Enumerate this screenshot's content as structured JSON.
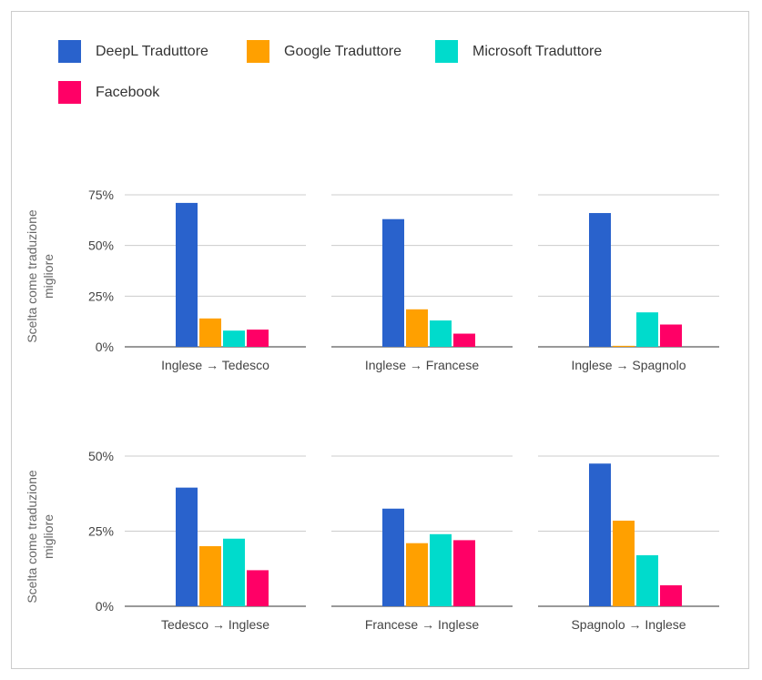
{
  "legend": [
    {
      "name": "DeepL Traduttore",
      "color": "#2962cc"
    },
    {
      "name": "Google Traduttore",
      "color": "#ffa000"
    },
    {
      "name": "Microsoft Traduttore",
      "color": "#00dbcc"
    },
    {
      "name": "Facebook",
      "color": "#ff0066"
    }
  ],
  "y_axis_label": "Scelta come traduzione migliore",
  "chart_data": [
    {
      "type": "bar",
      "title": "",
      "xlabel": "Inglese → Tedesco",
      "ylabel": "Scelta come traduzione migliore",
      "ylim": [
        0,
        75
      ],
      "yticks": [
        "0%",
        "25%",
        "50%",
        "75%"
      ],
      "series": [
        {
          "name": "DeepL Traduttore",
          "values": [
            71
          ]
        },
        {
          "name": "Google Traduttore",
          "values": [
            14
          ]
        },
        {
          "name": "Microsoft Traduttore",
          "values": [
            8
          ]
        },
        {
          "name": "Facebook",
          "values": [
            8.5
          ]
        }
      ]
    },
    {
      "type": "bar",
      "title": "",
      "xlabel": "Inglese → Francese",
      "ylabel": "",
      "ylim": [
        0,
        75
      ],
      "yticks": [],
      "series": [
        {
          "name": "DeepL Traduttore",
          "values": [
            63
          ]
        },
        {
          "name": "Google Traduttore",
          "values": [
            18.5
          ]
        },
        {
          "name": "Microsoft Traduttore",
          "values": [
            13
          ]
        },
        {
          "name": "Facebook",
          "values": [
            6.5
          ]
        }
      ]
    },
    {
      "type": "bar",
      "title": "",
      "xlabel": "Inglese → Spagnolo",
      "ylabel": "",
      "ylim": [
        0,
        75
      ],
      "yticks": [],
      "series": [
        {
          "name": "DeepL Traduttore",
          "values": [
            66
          ]
        },
        {
          "name": "Google Traduttore",
          "values": [
            0.5
          ]
        },
        {
          "name": "Microsoft Traduttore",
          "values": [
            17
          ]
        },
        {
          "name": "Facebook",
          "values": [
            11
          ]
        }
      ]
    },
    {
      "type": "bar",
      "title": "",
      "xlabel": "Tedesco → Inglese",
      "ylabel": "Scelta come traduzione migliore",
      "ylim": [
        0,
        50
      ],
      "yticks": [
        "0%",
        "25%",
        "50%"
      ],
      "series": [
        {
          "name": "DeepL Traduttore",
          "values": [
            39.5
          ]
        },
        {
          "name": "Google Traduttore",
          "values": [
            20
          ]
        },
        {
          "name": "Microsoft Traduttore",
          "values": [
            22.5
          ]
        },
        {
          "name": "Facebook",
          "values": [
            12
          ]
        }
      ]
    },
    {
      "type": "bar",
      "title": "",
      "xlabel": "Francese → Inglese",
      "ylabel": "",
      "ylim": [
        0,
        50
      ],
      "yticks": [],
      "series": [
        {
          "name": "DeepL Traduttore",
          "values": [
            32.5
          ]
        },
        {
          "name": "Google Traduttore",
          "values": [
            21
          ]
        },
        {
          "name": "Microsoft Traduttore",
          "values": [
            24
          ]
        },
        {
          "name": "Facebook",
          "values": [
            22
          ]
        }
      ]
    },
    {
      "type": "bar",
      "title": "",
      "xlabel": "Spagnolo → Inglese",
      "ylabel": "",
      "ylim": [
        0,
        50
      ],
      "yticks": [],
      "series": [
        {
          "name": "DeepL Traduttore",
          "values": [
            47.5
          ]
        },
        {
          "name": "Google Traduttore",
          "values": [
            28.5
          ]
        },
        {
          "name": "Microsoft Traduttore",
          "values": [
            17
          ]
        },
        {
          "name": "Facebook",
          "values": [
            7
          ]
        }
      ]
    }
  ]
}
